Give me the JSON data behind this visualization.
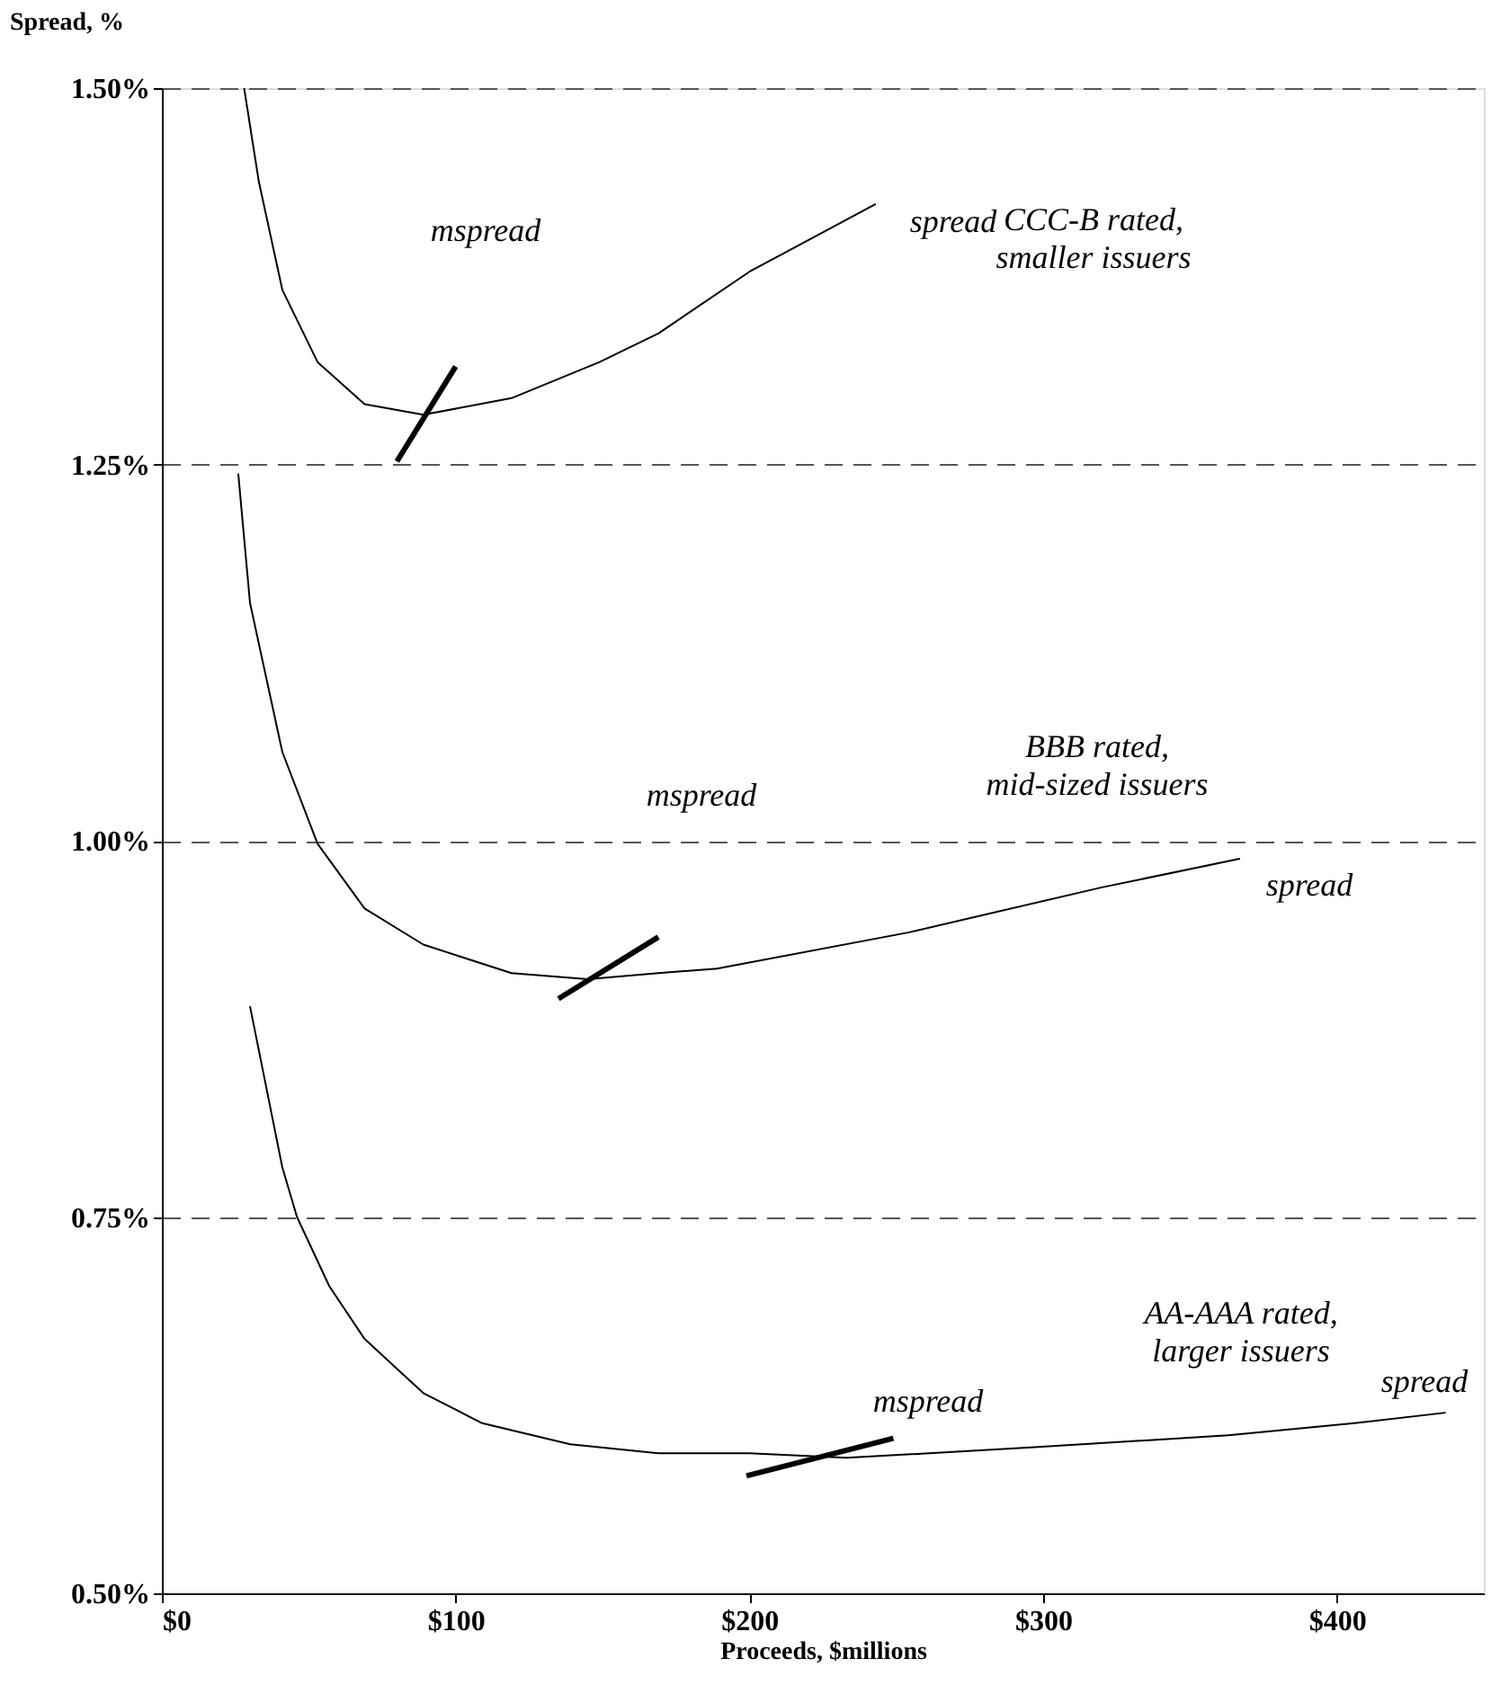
{
  "chart_data": {
    "type": "line",
    "xlabel": "Proceeds,  $millions",
    "ylabel": "Spread, %",
    "series": [
      {
        "color": "#000000",
        "x": [
          28,
          33,
          41,
          53,
          69,
          89,
          119,
          149,
          169,
          200,
          243
        ],
        "values": [
          1.5,
          1.438,
          1.366,
          1.318,
          1.29,
          1.283,
          1.294,
          1.318,
          1.337,
          1.378,
          1.423
        ]
      },
      {
        "color": "#000000",
        "x": [
          80,
          100
        ],
        "values": [
          1.252,
          1.315
        ]
      },
      {
        "color": "#000000",
        "x": [
          26,
          30,
          41,
          53,
          69,
          89,
          119,
          145,
          169,
          189,
          254,
          320,
          367
        ],
        "values": [
          1.244,
          1.158,
          1.059,
          0.998,
          0.955,
          0.931,
          0.912,
          0.908,
          0.912,
          0.915,
          0.939,
          0.969,
          0.988
        ]
      },
      {
        "color": "#000000",
        "x": [
          135,
          169
        ],
        "values": [
          0.895,
          0.936
        ]
      },
      {
        "color": "#000000",
        "x": [
          30,
          41,
          46,
          57,
          69,
          89,
          109,
          139,
          169,
          200,
          233,
          297,
          363,
          406,
          437
        ],
        "values": [
          0.89,
          0.783,
          0.75,
          0.704,
          0.669,
          0.633,
          0.613,
          0.599,
          0.593,
          0.593,
          0.59,
          0.597,
          0.605,
          0.613,
          0.62
        ]
      },
      {
        "color": "#000000",
        "x": [
          199,
          249
        ],
        "values": [
          0.578,
          0.603
        ]
      }
    ],
    "xlim": [
      0,
      450
    ],
    "xticks": [
      {
        "value": 0,
        "label": "$0"
      },
      {
        "value": 100,
        "label": "$100"
      },
      {
        "value": 200,
        "label": "$200"
      },
      {
        "value": 300,
        "label": "$300"
      },
      {
        "value": 400,
        "label": "$400"
      }
    ],
    "ylim": [
      0.5,
      1.5
    ],
    "yticks": [
      {
        "value": 0.5,
        "label": "0.50%"
      },
      {
        "value": 0.75,
        "label": "0.75%"
      },
      {
        "value": 1.0,
        "label": "1.00%"
      },
      {
        "value": 1.25,
        "label": "1.25%"
      },
      {
        "value": 1.5,
        "label": "1.50%"
      }
    ],
    "grid": "y",
    "marker": "none",
    "line_style": "solid",
    "annotations": [
      "mspread",
      "spread",
      "CCC-B rated,\nsmaller issuers",
      "BBB rated,\nmid-sized issuers",
      "mspread",
      "spread",
      "AA-AAA rated,\nlarger issuers",
      "mspread",
      "spread"
    ]
  }
}
